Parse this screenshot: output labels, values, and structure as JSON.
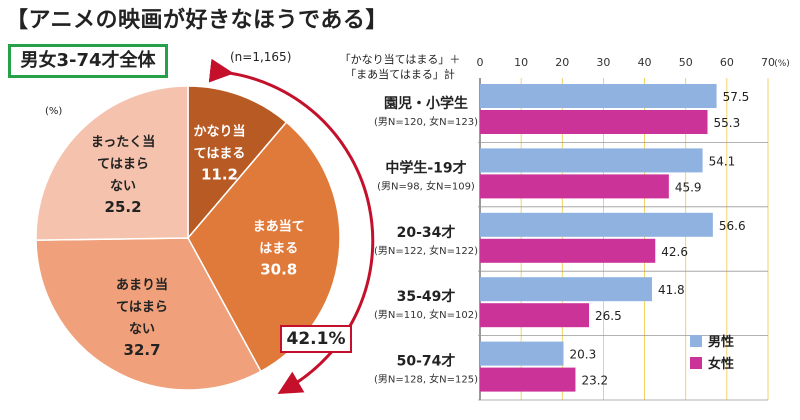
{
  "header": {
    "title": "【アニメの映画が好きなほうである】",
    "subtitle": "男女3-74才全体",
    "n_label": "(n=1,165)",
    "pie_unit": "(%)",
    "callout": "42.1%",
    "measure_line1": "「かなり当てはまる」＋",
    "measure_line2": "「まあ当てはまる」計"
  },
  "colors": {
    "pie": [
      "#b85a24",
      "#e07a3a",
      "#f0a07a",
      "#f5c2ad"
    ],
    "male": "#8fb2e0",
    "female": "#cc3399",
    "accent": "#c5102b",
    "box": "#27a04a"
  },
  "chart_data": [
    {
      "type": "pie",
      "title": "男女3-74才全体",
      "unit": "(%)",
      "slices": [
        {
          "label_lines": [
            "かなり当",
            "てはまる"
          ],
          "value": 11.2
        },
        {
          "label_lines": [
            "まあ当て",
            "はまる"
          ],
          "value": 30.8
        },
        {
          "label_lines": [
            "あまり当",
            "てはまら",
            "ない"
          ],
          "value": 32.7
        },
        {
          "label_lines": [
            "まったく当",
            "てはまら",
            "ない"
          ],
          "value": 25.2
        }
      ]
    },
    {
      "type": "bar",
      "orientation": "horizontal",
      "unit": "(%)",
      "xlim": [
        0,
        70
      ],
      "ticks": [
        0,
        10,
        20,
        30,
        40,
        50,
        60,
        70
      ],
      "categories": [
        {
          "name": "園児・小学生",
          "sub": "(男N=120, 女N=123)"
        },
        {
          "name": "中学生-19才",
          "sub": "(男N=98, 女N=109)"
        },
        {
          "name": "20-34才",
          "sub": "(男N=122, 女N=122)"
        },
        {
          "name": "35-49才",
          "sub": "(男N=110, 女N=102)"
        },
        {
          "name": "50-74才",
          "sub": "(男N=128, 女N=125)"
        }
      ],
      "series": [
        {
          "name": "男性",
          "values": [
            57.5,
            54.1,
            56.6,
            41.8,
            20.3
          ]
        },
        {
          "name": "女性",
          "values": [
            55.3,
            45.9,
            42.6,
            26.5,
            23.2
          ]
        }
      ],
      "grid": true,
      "legend": "bottom-right"
    }
  ]
}
